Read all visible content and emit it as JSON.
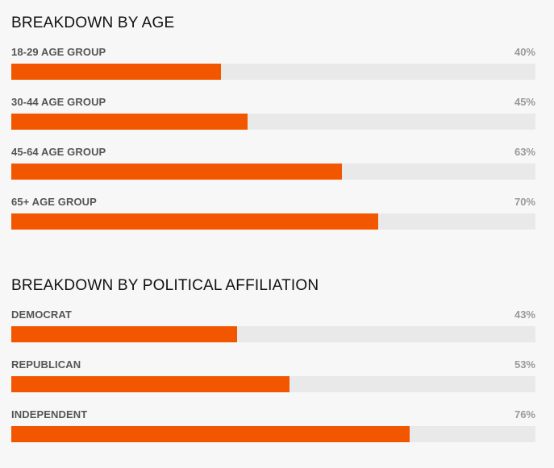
{
  "colors": {
    "bar_fill": "#f25700",
    "bar_track": "#e9e9e9"
  },
  "chart_data": [
    {
      "type": "bar",
      "orientation": "horizontal",
      "title": "BREAKDOWN BY AGE",
      "categories": [
        "18-29 AGE GROUP",
        "30-44 AGE GROUP",
        "45-64 AGE GROUP",
        "65+ AGE GROUP"
      ],
      "values": [
        40,
        45,
        63,
        70
      ],
      "value_labels": [
        "40%",
        "45%",
        "63%",
        "70%"
      ],
      "unit": "%",
      "xlim": [
        0,
        100
      ]
    },
    {
      "type": "bar",
      "orientation": "horizontal",
      "title": "BREAKDOWN BY POLITICAL AFFILIATION",
      "categories": [
        "DEMOCRAT",
        "REPUBLICAN",
        "INDEPENDENT"
      ],
      "values": [
        43,
        53,
        76
      ],
      "value_labels": [
        "43%",
        "53%",
        "76%"
      ],
      "unit": "%",
      "xlim": [
        0,
        100
      ]
    }
  ]
}
